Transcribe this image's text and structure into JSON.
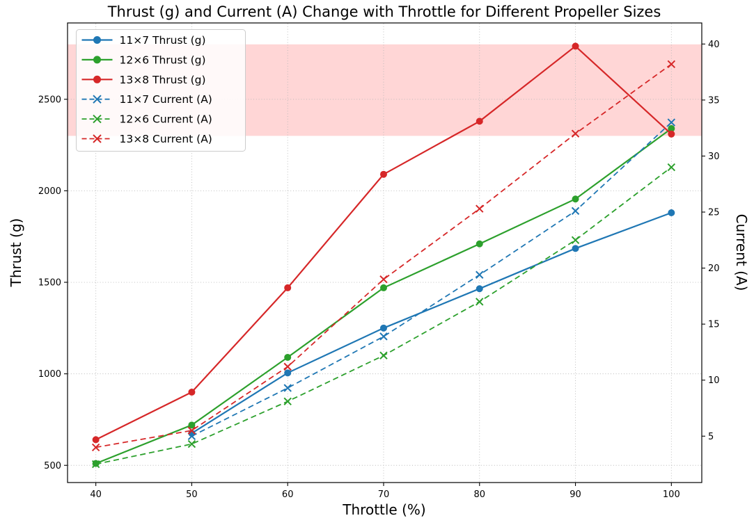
{
  "chart_data": {
    "type": "line",
    "title": "Thrust (g) and Current (A) Change with Throttle for Different Propeller Sizes",
    "xlabel": "Throttle (%)",
    "ylabel_left": "Thrust (g)",
    "ylabel_right": "Current (A)",
    "x": [
      40,
      50,
      60,
      70,
      80,
      90,
      100
    ],
    "x_ticks": [
      "40",
      "50",
      "60",
      "70",
      "80",
      "90",
      "100"
    ],
    "y_ticks_left": [
      "500",
      "1000",
      "1500",
      "2000",
      "2500"
    ],
    "y_ticks_left_values": [
      500,
      1000,
      1500,
      2000,
      2500
    ],
    "y_ticks_right": [
      "5",
      "10",
      "15",
      "20",
      "25",
      "30",
      "35",
      "40"
    ],
    "y_ticks_right_values": [
      5,
      10,
      15,
      20,
      25,
      30,
      35,
      40
    ],
    "xlim": [
      37.05,
      103.17
    ],
    "ylim_left": [
      406,
      2917
    ],
    "ylim_right": [
      0.86,
      41.88
    ],
    "grid": true,
    "legend_position": "upper-left",
    "highlight_band": {
      "axis": "left",
      "from": 2300,
      "to": 2800,
      "color": "rgba(255,0,0,0.16)"
    },
    "series": [
      {
        "name": "11×7 Thrust (g)",
        "axis": "left",
        "style": "solid",
        "marker": "circle",
        "color": "#1f77b4",
        "values": [
          null,
          675,
          1005,
          1250,
          1465,
          1685,
          1880
        ]
      },
      {
        "name": "12×6 Thrust (g)",
        "axis": "left",
        "style": "solid",
        "marker": "circle",
        "color": "#2ca02c",
        "values": [
          510,
          720,
          1090,
          1470,
          1710,
          1955,
          2340
        ]
      },
      {
        "name": "13×8 Thrust (g)",
        "axis": "left",
        "style": "solid",
        "marker": "circle",
        "color": "#d62728",
        "values": [
          640,
          900,
          1470,
          2090,
          2380,
          2790,
          2310
        ]
      },
      {
        "name": "11×7 Current (A)",
        "axis": "right",
        "style": "dashed",
        "marker": "x",
        "color": "#1f77b4",
        "values": [
          null,
          5.0,
          9.3,
          13.9,
          19.4,
          25.1,
          33.0
        ]
      },
      {
        "name": "12×6 Current (A)",
        "axis": "right",
        "style": "dashed",
        "marker": "x",
        "color": "#2ca02c",
        "values": [
          2.5,
          4.3,
          8.1,
          12.2,
          17.0,
          22.5,
          29.0
        ]
      },
      {
        "name": "13×8 Current (A)",
        "axis": "right",
        "style": "dashed",
        "marker": "x",
        "color": "#d62728",
        "values": [
          4.0,
          5.5,
          11.2,
          19.0,
          25.3,
          32.0,
          38.2
        ]
      }
    ],
    "colors": {
      "blue": "#1f77b4",
      "green": "#2ca02c",
      "red": "#d62728",
      "grid": "#b8b8b8",
      "band": "rgba(255,0,0,0.16)"
    }
  }
}
